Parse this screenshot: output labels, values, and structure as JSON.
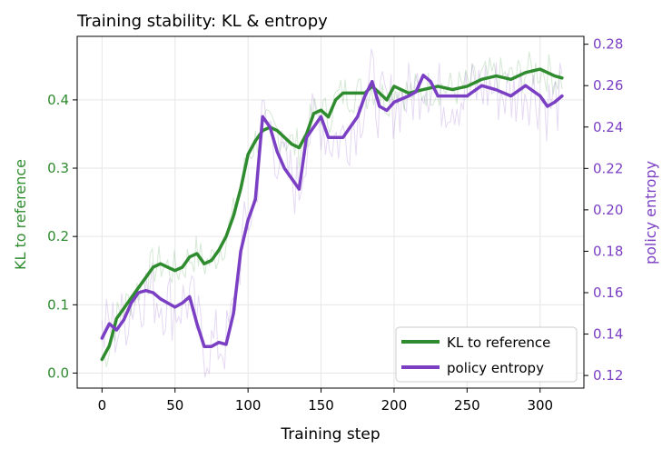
{
  "chart_data": {
    "type": "line",
    "title": "Training stability: KL & entropy",
    "xlabel": "Training step",
    "ylabel_left": "KL to reference",
    "ylabel_right": "policy entropy",
    "xlim": [
      -17,
      330
    ],
    "ylim_left": [
      -0.022,
      0.493
    ],
    "ylim_right": [
      0.1139,
      0.2838
    ],
    "x_ticks": [
      0,
      50,
      100,
      150,
      200,
      250,
      300
    ],
    "y_ticks_left": [
      0.0,
      0.1,
      0.2,
      0.3,
      0.4
    ],
    "y_ticks_right": [
      0.12,
      0.14,
      0.16,
      0.18,
      0.2,
      0.22,
      0.24,
      0.26,
      0.28
    ],
    "grid": true,
    "legend_position": "lower-right",
    "colors": {
      "kl": "#2e8b2e",
      "entropy": "#7b3fc4",
      "left_axis_text": "#2e8b2e",
      "right_axis_text": "#7b3fc4"
    },
    "series": [
      {
        "name": "KL to reference",
        "axis": "left",
        "x": [
          0,
          5,
          10,
          15,
          20,
          25,
          30,
          35,
          40,
          45,
          50,
          55,
          60,
          65,
          70,
          75,
          80,
          85,
          90,
          95,
          100,
          105,
          110,
          115,
          120,
          125,
          130,
          135,
          140,
          145,
          150,
          155,
          160,
          165,
          170,
          175,
          180,
          185,
          190,
          195,
          200,
          210,
          220,
          230,
          240,
          250,
          260,
          270,
          280,
          290,
          300,
          305,
          310,
          315
        ],
        "values": [
          0.02,
          0.04,
          0.08,
          0.095,
          0.11,
          0.125,
          0.14,
          0.155,
          0.16,
          0.155,
          0.15,
          0.155,
          0.17,
          0.175,
          0.16,
          0.165,
          0.18,
          0.2,
          0.23,
          0.27,
          0.32,
          0.34,
          0.355,
          0.36,
          0.355,
          0.345,
          0.335,
          0.33,
          0.35,
          0.38,
          0.385,
          0.375,
          0.4,
          0.41,
          0.41,
          0.41,
          0.41,
          0.42,
          0.41,
          0.4,
          0.42,
          0.41,
          0.415,
          0.42,
          0.415,
          0.42,
          0.43,
          0.435,
          0.43,
          0.44,
          0.445,
          0.44,
          0.435,
          0.432
        ]
      },
      {
        "name": "policy entropy",
        "axis": "right",
        "x": [
          0,
          5,
          10,
          15,
          20,
          25,
          30,
          35,
          40,
          45,
          50,
          55,
          60,
          65,
          70,
          75,
          80,
          85,
          90,
          95,
          100,
          105,
          110,
          115,
          120,
          125,
          130,
          135,
          140,
          145,
          150,
          155,
          160,
          165,
          170,
          175,
          180,
          185,
          190,
          195,
          200,
          210,
          215,
          220,
          225,
          230,
          240,
          250,
          260,
          270,
          280,
          290,
          300,
          305,
          310,
          315
        ],
        "values": [
          0.138,
          0.145,
          0.142,
          0.147,
          0.155,
          0.16,
          0.161,
          0.16,
          0.157,
          0.155,
          0.153,
          0.155,
          0.158,
          0.145,
          0.134,
          0.134,
          0.136,
          0.135,
          0.15,
          0.18,
          0.195,
          0.205,
          0.245,
          0.24,
          0.228,
          0.22,
          0.215,
          0.21,
          0.235,
          0.24,
          0.245,
          0.235,
          0.235,
          0.235,
          0.24,
          0.245,
          0.255,
          0.262,
          0.25,
          0.248,
          0.252,
          0.255,
          0.257,
          0.265,
          0.262,
          0.255,
          0.255,
          0.255,
          0.26,
          0.258,
          0.255,
          0.26,
          0.255,
          0.25,
          0.252,
          0.255
        ]
      }
    ]
  }
}
